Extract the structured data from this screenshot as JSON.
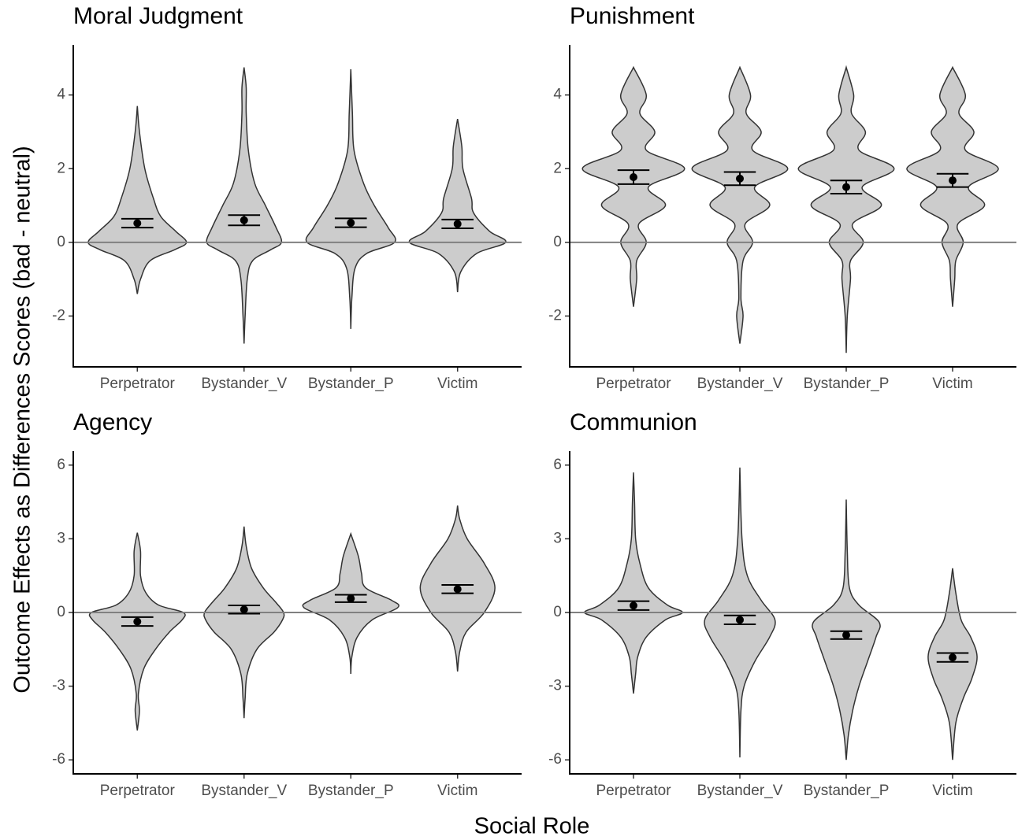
{
  "ylabel": "Outcome Effects as Differences Scores (bad - neutral)",
  "xlabel": "Social Role",
  "chart_data": [
    {
      "type": "violin",
      "title": "Moral Judgment",
      "categories": [
        "Perpetrator",
        "Bystander_V",
        "Bystander_P",
        "Victim"
      ],
      "ylim": [
        -3.38,
        5.36
      ],
      "yticks": [
        -2,
        0,
        2,
        4
      ],
      "values": [
        0.52,
        0.6,
        0.53,
        0.5
      ],
      "errors": [
        0.12,
        0.14,
        0.12,
        0.12
      ],
      "violins": [
        {
          "y": [
            -1.4,
            -1,
            -0.5,
            -0.2,
            0,
            0.3,
            0.7,
            1.2,
            2,
            3,
            3.7
          ],
          "density": [
            0,
            0.03,
            0.12,
            0.35,
            0.46,
            0.36,
            0.22,
            0.15,
            0.07,
            0.02,
            0
          ]
        },
        {
          "y": [
            -2.75,
            -2,
            -1,
            -0.5,
            -0.2,
            0,
            0.4,
            1,
            1.6,
            2.5,
            3.5,
            4.2,
            4.75
          ],
          "density": [
            0,
            0.01,
            0.03,
            0.08,
            0.25,
            0.35,
            0.3,
            0.2,
            0.1,
            0.04,
            0.02,
            0.02,
            0
          ]
        },
        {
          "y": [
            -2.35,
            -1.5,
            -0.7,
            -0.3,
            0,
            0.4,
            1,
            1.6,
            2.5,
            3.5,
            4.7
          ],
          "density": [
            0,
            0.01,
            0.04,
            0.15,
            0.41,
            0.35,
            0.22,
            0.12,
            0.03,
            0.015,
            0
          ]
        },
        {
          "y": [
            -1.35,
            -0.8,
            -0.3,
            0,
            0.3,
            0.8,
            1.2,
            2,
            2.6,
            3.35
          ],
          "density": [
            0,
            0.03,
            0.18,
            0.45,
            0.3,
            0.15,
            0.13,
            0.05,
            0.04,
            0
          ]
        }
      ]
    },
    {
      "type": "violin",
      "title": "Punishment",
      "categories": [
        "Perpetrator",
        "Bystander_V",
        "Bystander_P",
        "Victim"
      ],
      "ylim": [
        -3.38,
        5.36
      ],
      "yticks": [
        -2,
        0,
        2,
        4
      ],
      "values": [
        1.77,
        1.73,
        1.5,
        1.68
      ],
      "errors": [
        0.19,
        0.18,
        0.18,
        0.18
      ],
      "violins": [
        {
          "y": [
            -1.75,
            -1,
            -0.5,
            0,
            0.5,
            1,
            1.5,
            2,
            2.5,
            3,
            3.5,
            4,
            4.75
          ],
          "density": [
            0,
            0.03,
            0.03,
            0.12,
            0.05,
            0.3,
            0.14,
            0.48,
            0.12,
            0.2,
            0.06,
            0.12,
            0
          ]
        },
        {
          "y": [
            -2.75,
            -2,
            -1.5,
            -0.5,
            0,
            0.5,
            1,
            1.5,
            2,
            2.5,
            3,
            3.5,
            4,
            4.75
          ],
          "density": [
            0,
            0.03,
            0.01,
            0.03,
            0.12,
            0.05,
            0.28,
            0.14,
            0.45,
            0.12,
            0.2,
            0.06,
            0.1,
            0
          ]
        },
        {
          "y": [
            -3,
            -2,
            -1,
            -0.5,
            0,
            0.5,
            1,
            1.5,
            2,
            2.5,
            3,
            3.5,
            4,
            4.75
          ],
          "density": [
            0,
            0.01,
            0.04,
            0.04,
            0.16,
            0.06,
            0.33,
            0.15,
            0.45,
            0.12,
            0.18,
            0.05,
            0.07,
            0
          ]
        },
        {
          "y": [
            -1.75,
            -1,
            -0.5,
            0,
            0.5,
            1,
            1.5,
            2,
            2.5,
            3,
            3.5,
            4,
            4.75
          ],
          "density": [
            0,
            0.02,
            0.03,
            0.1,
            0.05,
            0.3,
            0.15,
            0.43,
            0.12,
            0.2,
            0.06,
            0.12,
            0
          ]
        }
      ]
    },
    {
      "type": "violin",
      "title": "Agency",
      "categories": [
        "Perpetrator",
        "Bystander_V",
        "Bystander_P",
        "Victim"
      ],
      "ylim": [
        -6.57,
        6.57
      ],
      "yticks": [
        -6,
        -3,
        0,
        3,
        6
      ],
      "values": [
        -0.37,
        0.12,
        0.57,
        0.95
      ],
      "errors": [
        0.18,
        0.17,
        0.15,
        0.17
      ],
      "violins": [
        {
          "y": [
            -4.8,
            -4,
            -3.3,
            -2.3,
            -1.5,
            -0.8,
            -0.3,
            0,
            0.3,
            0.8,
            1.5,
            2.5,
            3.25
          ],
          "density": [
            0,
            0.02,
            0.01,
            0.06,
            0.17,
            0.3,
            0.42,
            0.43,
            0.2,
            0.08,
            0.03,
            0.03,
            0
          ]
        },
        {
          "y": [
            -4.3,
            -3.5,
            -2.5,
            -1.5,
            -0.8,
            -0.3,
            0,
            0.4,
            1,
            1.8,
            2.7,
            3.5
          ],
          "density": [
            0,
            0.01,
            0.03,
            0.12,
            0.28,
            0.36,
            0.37,
            0.3,
            0.18,
            0.07,
            0.02,
            0
          ]
        },
        {
          "y": [
            -2.5,
            -1.8,
            -1,
            -0.3,
            0.2,
            0.5,
            1,
            1.6,
            2.3,
            3.2
          ],
          "density": [
            0,
            0.01,
            0.06,
            0.2,
            0.44,
            0.38,
            0.14,
            0.1,
            0.07,
            0
          ]
        },
        {
          "y": [
            -2.4,
            -1.6,
            -0.8,
            0,
            1,
            2,
            3,
            3.8,
            4.35
          ],
          "density": [
            0,
            0.02,
            0.08,
            0.25,
            0.35,
            0.25,
            0.09,
            0.02,
            0
          ]
        }
      ]
    },
    {
      "type": "violin",
      "title": "Communion",
      "categories": [
        "Perpetrator",
        "Bystander_V",
        "Bystander_P",
        "Victim"
      ],
      "ylim": [
        -6.57,
        6.57
      ],
      "yticks": [
        -6,
        -3,
        0,
        3,
        6
      ],
      "values": [
        0.28,
        -0.3,
        -0.92,
        -1.83
      ],
      "errors": [
        0.18,
        0.18,
        0.16,
        0.18
      ],
      "violins": [
        {
          "y": [
            -3.3,
            -2.5,
            -1.8,
            -1,
            -0.3,
            0,
            0.3,
            1,
            2,
            3,
            4.5,
            5.7
          ],
          "density": [
            0,
            0.02,
            0.04,
            0.12,
            0.3,
            0.46,
            0.32,
            0.14,
            0.06,
            0.02,
            0.01,
            0
          ]
        },
        {
          "y": [
            -5.9,
            -4,
            -3,
            -2,
            -1,
            -0.3,
            0.5,
            1.5,
            3,
            5.9
          ],
          "density": [
            0,
            0.01,
            0.04,
            0.14,
            0.28,
            0.33,
            0.2,
            0.07,
            0.02,
            0
          ]
        },
        {
          "y": [
            -6,
            -5,
            -4,
            -3,
            -2,
            -1,
            -0.4,
            0.3,
            1,
            2.5,
            4.6
          ],
          "density": [
            0,
            0.02,
            0.06,
            0.12,
            0.2,
            0.28,
            0.31,
            0.12,
            0.03,
            0.01,
            0
          ]
        },
        {
          "y": [
            -6,
            -4.5,
            -3.5,
            -2.7,
            -1.8,
            -1,
            -0.3,
            0.8,
            1.8
          ],
          "density": [
            0,
            0.03,
            0.1,
            0.18,
            0.23,
            0.17,
            0.08,
            0.03,
            0
          ]
        }
      ]
    }
  ]
}
